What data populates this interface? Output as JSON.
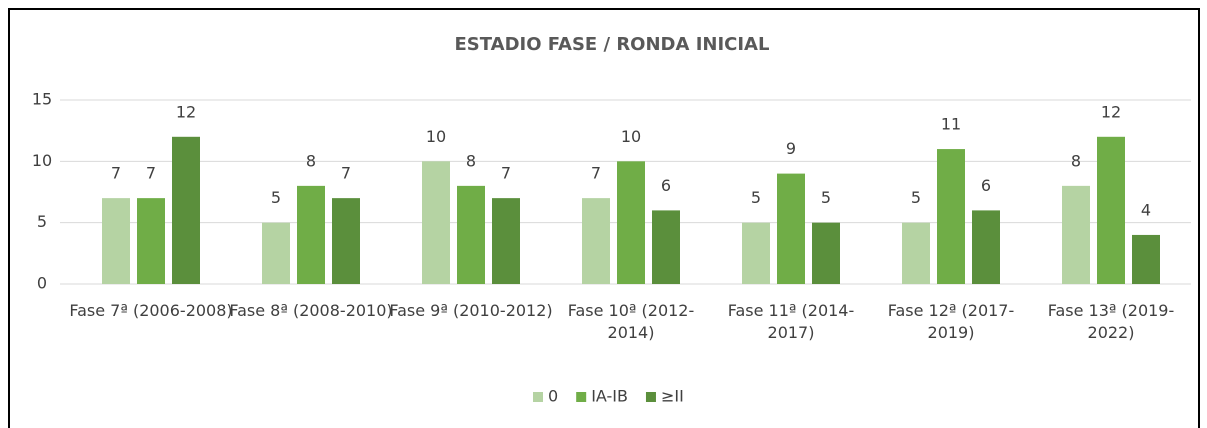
{
  "chart_data": {
    "type": "bar",
    "title": "ESTADIO FASE /  RONDA INICIAL",
    "categories": [
      "Fase 7ª (2006-2008)",
      "Fase 8ª (2008-2010)",
      "Fase 9ª (2010-2012)",
      "Fase 10ª (2012-2014)",
      "Fase 11ª (2014-2017)",
      "Fase 12ª (2017-2019)",
      "Fase 13ª (2019-2022)"
    ],
    "series": [
      {
        "name": "0",
        "color": "#b5d3a3",
        "values": [
          7,
          5,
          10,
          7,
          5,
          5,
          8
        ]
      },
      {
        "name": "IA-IB",
        "color": "#70ad47",
        "values": [
          7,
          8,
          8,
          10,
          9,
          11,
          12
        ]
      },
      {
        "name": "≥II",
        "color": "#5b8f3c",
        "values": [
          12,
          7,
          7,
          6,
          5,
          6,
          4
        ]
      }
    ],
    "ylim": [
      0,
      15
    ],
    "yticks": [
      0,
      5,
      10,
      15
    ],
    "grid": true,
    "legend": "bottom"
  }
}
